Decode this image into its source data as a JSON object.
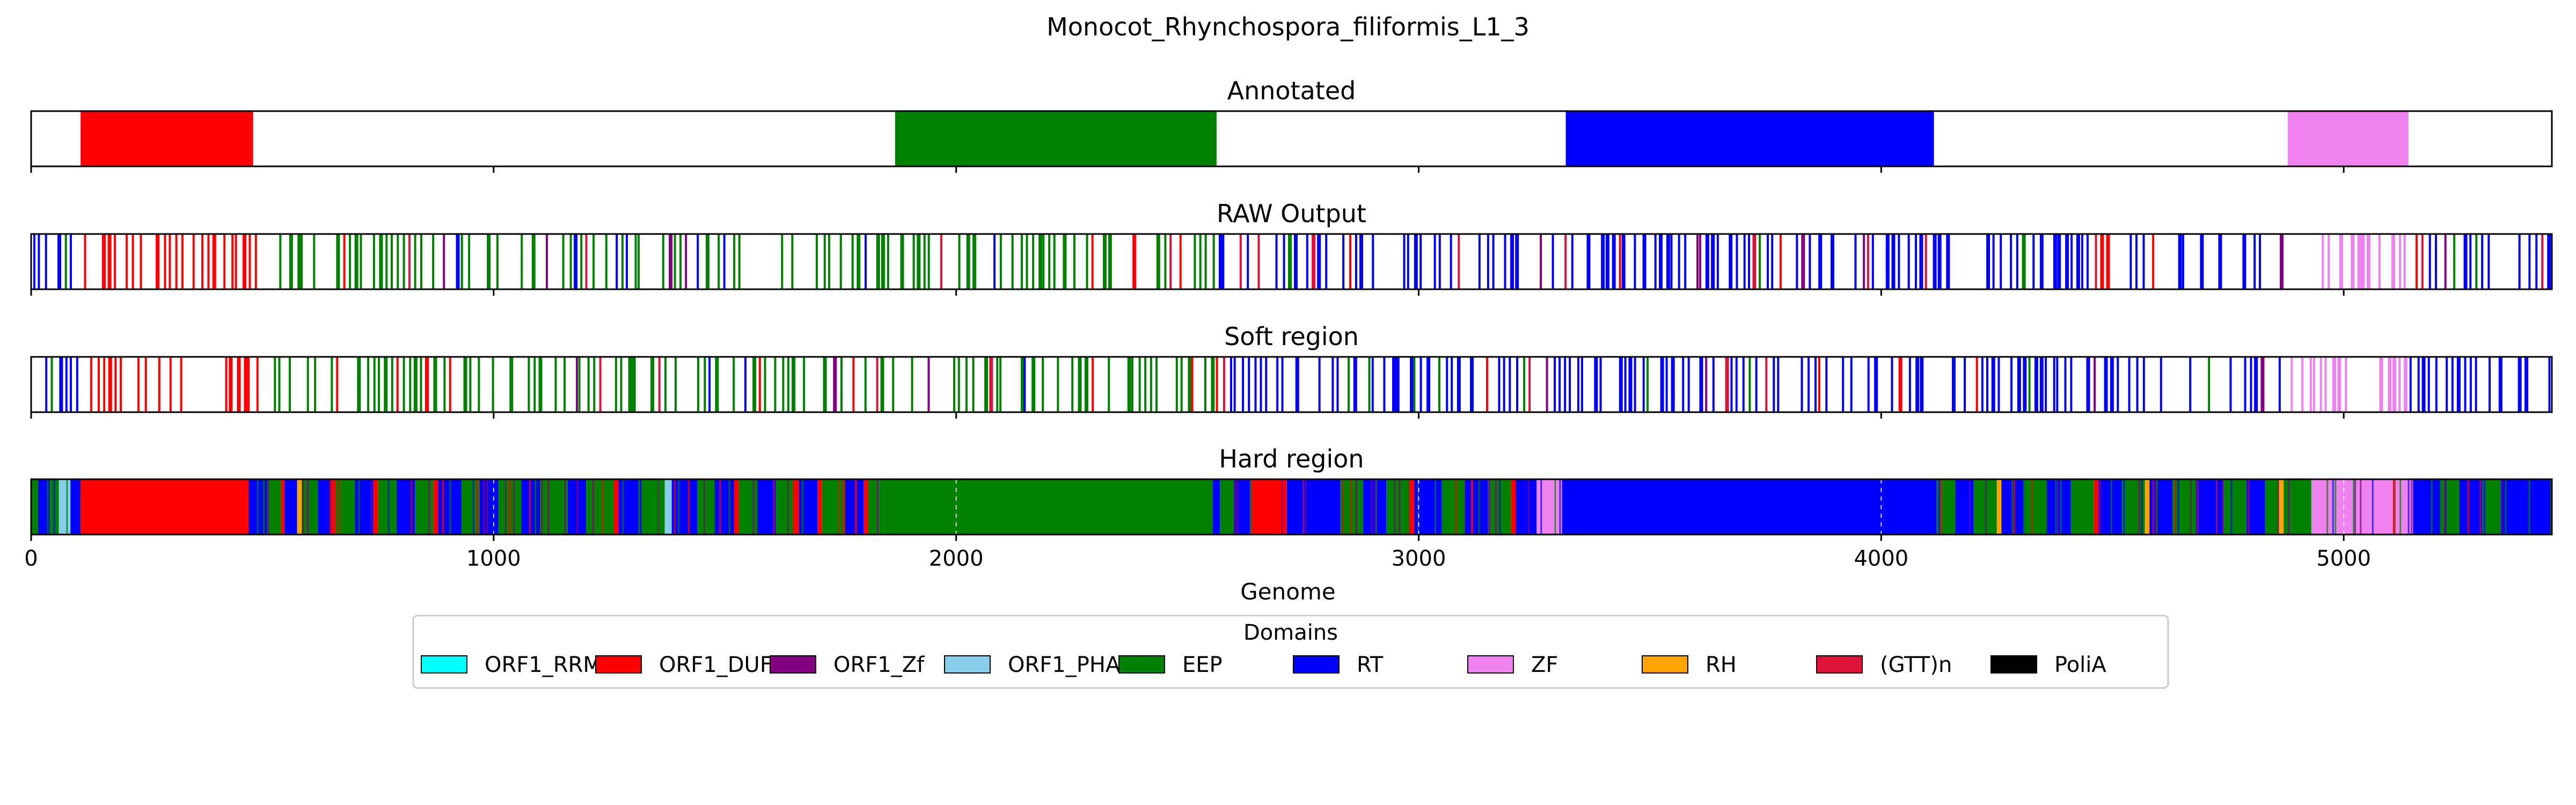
{
  "chart_data": {
    "type": "track",
    "title": "Monocot_Rhynchospora_filiformis_L1_3",
    "xlabel": "Genome",
    "xlim": [
      0,
      5450
    ],
    "xticks": [
      0,
      1000,
      2000,
      3000,
      4000,
      5000
    ],
    "xtick_labels": [
      "0",
      "1000",
      "2000",
      "3000",
      "4000",
      "5000"
    ],
    "legend_title": "Domains",
    "legend": [
      {
        "name": "ORF1_RRM",
        "color": "#00ffff"
      },
      {
        "name": "ORF1_DUF",
        "color": "#ff0000"
      },
      {
        "name": "ORF1_Zf",
        "color": "#800080"
      },
      {
        "name": "ORF1_PHA",
        "color": "#87ceeb"
      },
      {
        "name": "EEP",
        "color": "#008000"
      },
      {
        "name": "RT",
        "color": "#0000ff"
      },
      {
        "name": "ZF",
        "color": "#ee82ee"
      },
      {
        "name": "RH",
        "color": "#ffa500"
      },
      {
        "name": "(GTT)n",
        "color": "#dc143c"
      },
      {
        "name": "PoliA",
        "color": "#000000"
      }
    ],
    "panels": [
      {
        "title": "Annotated",
        "style": "blocks",
        "segments": [
          {
            "domain": "ORF1_DUF",
            "start": 107,
            "end": 480
          },
          {
            "domain": "EEP",
            "start": 1868,
            "end": 2563
          },
          {
            "domain": "RT",
            "start": 3318,
            "end": 4114
          },
          {
            "domain": "ZF",
            "start": 4879,
            "end": 5140
          }
        ]
      },
      {
        "title": "RAW Output",
        "style": "lines",
        "segments": [
          {
            "domain": "RT",
            "start": 0,
            "end": 110
          },
          {
            "domain": "ORF1_DUF",
            "start": 110,
            "end": 480
          },
          {
            "domain": "EEP",
            "start": 480,
            "end": 1860
          },
          {
            "domain": "EEP",
            "start": 1860,
            "end": 2560
          },
          {
            "domain": "RT",
            "start": 2560,
            "end": 3310
          },
          {
            "domain": "RT",
            "start": 3310,
            "end": 4120
          },
          {
            "domain": "RT",
            "start": 4120,
            "end": 4880
          },
          {
            "domain": "ZF",
            "start": 4880,
            "end": 5140
          },
          {
            "domain": "RT",
            "start": 5140,
            "end": 5450
          }
        ]
      },
      {
        "title": "Soft region",
        "style": "lines",
        "segments": [
          {
            "domain": "RT",
            "start": 0,
            "end": 110
          },
          {
            "domain": "ORF1_DUF",
            "start": 110,
            "end": 480
          },
          {
            "domain": "EEP",
            "start": 480,
            "end": 1860
          },
          {
            "domain": "EEP",
            "start": 1860,
            "end": 2560
          },
          {
            "domain": "RT",
            "start": 2560,
            "end": 3310
          },
          {
            "domain": "RT",
            "start": 3310,
            "end": 4120
          },
          {
            "domain": "RT",
            "start": 4120,
            "end": 4880
          },
          {
            "domain": "ZF",
            "start": 4880,
            "end": 5140
          },
          {
            "domain": "RT",
            "start": 5140,
            "end": 5450
          }
        ]
      },
      {
        "title": "Hard region",
        "style": "blocks",
        "segments": [
          {
            "domain": "EEP",
            "start": 0,
            "end": 15
          },
          {
            "domain": "RT",
            "start": 15,
            "end": 40
          },
          {
            "domain": "EEP",
            "start": 40,
            "end": 60
          },
          {
            "domain": "ORF1_PHA",
            "start": 60,
            "end": 85
          },
          {
            "domain": "RT",
            "start": 85,
            "end": 107
          },
          {
            "domain": "ORF1_DUF",
            "start": 107,
            "end": 470
          },
          {
            "domain": "RT",
            "start": 470,
            "end": 510
          },
          {
            "domain": "EEP",
            "start": 510,
            "end": 540
          },
          {
            "domain": "ORF1_DUF",
            "start": 540,
            "end": 548
          },
          {
            "domain": "RT",
            "start": 548,
            "end": 575
          },
          {
            "domain": "RH",
            "start": 575,
            "end": 585
          },
          {
            "domain": "EEP",
            "start": 585,
            "end": 620
          },
          {
            "domain": "RT",
            "start": 620,
            "end": 650
          },
          {
            "domain": "ORF1_DUF",
            "start": 650,
            "end": 658
          },
          {
            "domain": "EEP",
            "start": 658,
            "end": 700
          },
          {
            "domain": "RT",
            "start": 700,
            "end": 740
          },
          {
            "domain": "ORF1_DUF",
            "start": 740,
            "end": 750
          },
          {
            "domain": "EEP",
            "start": 750,
            "end": 790
          },
          {
            "domain": "RT",
            "start": 790,
            "end": 830
          },
          {
            "domain": "EEP",
            "start": 830,
            "end": 870
          },
          {
            "domain": "ORF1_DUF",
            "start": 870,
            "end": 880
          },
          {
            "domain": "RT",
            "start": 880,
            "end": 930
          },
          {
            "domain": "EEP",
            "start": 930,
            "end": 970
          },
          {
            "domain": "RT",
            "start": 970,
            "end": 1010
          },
          {
            "domain": "EEP",
            "start": 1010,
            "end": 1060
          },
          {
            "domain": "RT",
            "start": 1060,
            "end": 1100
          },
          {
            "domain": "EEP",
            "start": 1100,
            "end": 1160
          },
          {
            "domain": "RT",
            "start": 1160,
            "end": 1200
          },
          {
            "domain": "EEP",
            "start": 1200,
            "end": 1260
          },
          {
            "domain": "ORF1_DUF",
            "start": 1260,
            "end": 1270
          },
          {
            "domain": "RT",
            "start": 1270,
            "end": 1320
          },
          {
            "domain": "EEP",
            "start": 1320,
            "end": 1370
          },
          {
            "domain": "ORF1_PHA",
            "start": 1370,
            "end": 1385
          },
          {
            "domain": "RT",
            "start": 1385,
            "end": 1440
          },
          {
            "domain": "EEP",
            "start": 1440,
            "end": 1480
          },
          {
            "domain": "RT",
            "start": 1480,
            "end": 1520
          },
          {
            "domain": "ORF1_DUF",
            "start": 1520,
            "end": 1530
          },
          {
            "domain": "EEP",
            "start": 1530,
            "end": 1570
          },
          {
            "domain": "RT",
            "start": 1570,
            "end": 1610
          },
          {
            "domain": "EEP",
            "start": 1610,
            "end": 1650
          },
          {
            "domain": "ORF1_DUF",
            "start": 1650,
            "end": 1660
          },
          {
            "domain": "RT",
            "start": 1660,
            "end": 1700
          },
          {
            "domain": "ORF1_DUF",
            "start": 1700,
            "end": 1710
          },
          {
            "domain": "EEP",
            "start": 1710,
            "end": 1760
          },
          {
            "domain": "RT",
            "start": 1760,
            "end": 1800
          },
          {
            "domain": "ORF1_DUF",
            "start": 1800,
            "end": 1810
          },
          {
            "domain": "EEP",
            "start": 1810,
            "end": 1845
          },
          {
            "domain": "EEP",
            "start": 1845,
            "end": 2555
          },
          {
            "domain": "RT",
            "start": 2555,
            "end": 2570
          },
          {
            "domain": "EEP",
            "start": 2570,
            "end": 2600
          },
          {
            "domain": "RT",
            "start": 2600,
            "end": 2635
          },
          {
            "domain": "ORF1_DUF",
            "start": 2635,
            "end": 2715
          },
          {
            "domain": "RT",
            "start": 2715,
            "end": 2830
          },
          {
            "domain": "EEP",
            "start": 2830,
            "end": 2880
          },
          {
            "domain": "RT",
            "start": 2880,
            "end": 2930
          },
          {
            "domain": "EEP",
            "start": 2930,
            "end": 2980
          },
          {
            "domain": "ORF1_DUF",
            "start": 2980,
            "end": 2990
          },
          {
            "domain": "RT",
            "start": 2990,
            "end": 3050
          },
          {
            "domain": "EEP",
            "start": 3050,
            "end": 3100
          },
          {
            "domain": "RT",
            "start": 3100,
            "end": 3150
          },
          {
            "domain": "EEP",
            "start": 3150,
            "end": 3200
          },
          {
            "domain": "ORF1_DUF",
            "start": 3200,
            "end": 3210
          },
          {
            "domain": "RT",
            "start": 3210,
            "end": 3255
          },
          {
            "domain": "ZF",
            "start": 3255,
            "end": 3310
          },
          {
            "domain": "RT",
            "start": 3310,
            "end": 4120
          },
          {
            "domain": "EEP",
            "start": 4120,
            "end": 4160
          },
          {
            "domain": "RT",
            "start": 4160,
            "end": 4200
          },
          {
            "domain": "EEP",
            "start": 4200,
            "end": 4250
          },
          {
            "domain": "RH",
            "start": 4250,
            "end": 4260
          },
          {
            "domain": "RT",
            "start": 4260,
            "end": 4310
          },
          {
            "domain": "EEP",
            "start": 4310,
            "end": 4360
          },
          {
            "domain": "RT",
            "start": 4360,
            "end": 4410
          },
          {
            "domain": "EEP",
            "start": 4410,
            "end": 4460
          },
          {
            "domain": "ORF1_DUF",
            "start": 4460,
            "end": 4470
          },
          {
            "domain": "RT",
            "start": 4470,
            "end": 4520
          },
          {
            "domain": "EEP",
            "start": 4520,
            "end": 4570
          },
          {
            "domain": "RH",
            "start": 4570,
            "end": 4580
          },
          {
            "domain": "RT",
            "start": 4580,
            "end": 4630
          },
          {
            "domain": "EEP",
            "start": 4630,
            "end": 4680
          },
          {
            "domain": "RT",
            "start": 4680,
            "end": 4740
          },
          {
            "domain": "EEP",
            "start": 4740,
            "end": 4790
          },
          {
            "domain": "RT",
            "start": 4790,
            "end": 4830
          },
          {
            "domain": "EEP",
            "start": 4830,
            "end": 4860
          },
          {
            "domain": "RH",
            "start": 4860,
            "end": 4870
          },
          {
            "domain": "EEP",
            "start": 4870,
            "end": 4930
          },
          {
            "domain": "ZF",
            "start": 4930,
            "end": 5150
          },
          {
            "domain": "RT",
            "start": 5150,
            "end": 5210
          },
          {
            "domain": "EEP",
            "start": 5210,
            "end": 5250
          },
          {
            "domain": "RT",
            "start": 5250,
            "end": 5300
          },
          {
            "domain": "EEP",
            "start": 5300,
            "end": 5340
          },
          {
            "domain": "RT",
            "start": 5340,
            "end": 5450
          }
        ]
      }
    ]
  }
}
